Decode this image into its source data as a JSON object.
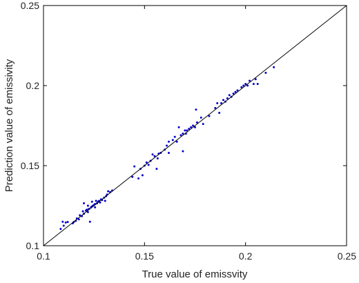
{
  "chart_data": {
    "type": "scatter",
    "title": "",
    "xlabel": "True value of emissvity",
    "ylabel": "Prediction value of emissivity",
    "xlim": [
      0.1,
      0.25
    ],
    "ylim": [
      0.1,
      0.25
    ],
    "xticks": [
      "0.1",
      "0.15",
      "0.2",
      "0.25"
    ],
    "yticks": [
      "0.1",
      "0.15",
      "0.2",
      "0.25"
    ],
    "grid": false,
    "reference_line": {
      "from": [
        0.1,
        0.1
      ],
      "to": [
        0.25,
        0.25
      ],
      "color": "#000000"
    },
    "series": [
      {
        "color": "#0000cc",
        "points": [
          [
            0.1085,
            0.1105
          ],
          [
            0.1095,
            0.115
          ],
          [
            0.11,
            0.1125
          ],
          [
            0.111,
            0.1145
          ],
          [
            0.112,
            0.1148
          ],
          [
            0.1145,
            0.114
          ],
          [
            0.115,
            0.1148
          ],
          [
            0.116,
            0.1155
          ],
          [
            0.1165,
            0.117
          ],
          [
            0.1175,
            0.1165
          ],
          [
            0.118,
            0.119
          ],
          [
            0.119,
            0.1185
          ],
          [
            0.1195,
            0.1215
          ],
          [
            0.12,
            0.12
          ],
          [
            0.12,
            0.1265
          ],
          [
            0.121,
            0.122
          ],
          [
            0.1215,
            0.1225
          ],
          [
            0.122,
            0.121
          ],
          [
            0.122,
            0.125
          ],
          [
            0.1225,
            0.123
          ],
          [
            0.123,
            0.115
          ],
          [
            0.1235,
            0.124
          ],
          [
            0.124,
            0.1245
          ],
          [
            0.124,
            0.1275
          ],
          [
            0.1245,
            0.125
          ],
          [
            0.125,
            0.1255
          ],
          [
            0.1255,
            0.126
          ],
          [
            0.1255,
            0.124
          ],
          [
            0.126,
            0.128
          ],
          [
            0.1265,
            0.1265
          ],
          [
            0.127,
            0.1275
          ],
          [
            0.1275,
            0.128
          ],
          [
            0.128,
            0.127
          ],
          [
            0.1285,
            0.129
          ],
          [
            0.129,
            0.1285
          ],
          [
            0.13,
            0.13
          ],
          [
            0.1305,
            0.128
          ],
          [
            0.131,
            0.131
          ],
          [
            0.1315,
            0.132
          ],
          [
            0.132,
            0.134
          ],
          [
            0.133,
            0.1335
          ],
          [
            0.134,
            0.1345
          ],
          [
            0.144,
            0.143
          ],
          [
            0.145,
            0.1495
          ],
          [
            0.147,
            0.142
          ],
          [
            0.148,
            0.148
          ],
          [
            0.149,
            0.144
          ],
          [
            0.15,
            0.15
          ],
          [
            0.151,
            0.152
          ],
          [
            0.152,
            0.1505
          ],
          [
            0.153,
            0.153
          ],
          [
            0.154,
            0.157
          ],
          [
            0.155,
            0.156
          ],
          [
            0.156,
            0.148
          ],
          [
            0.1565,
            0.1545
          ],
          [
            0.157,
            0.1575
          ],
          [
            0.158,
            0.158
          ],
          [
            0.16,
            0.16
          ],
          [
            0.161,
            0.1625
          ],
          [
            0.162,
            0.158
          ],
          [
            0.162,
            0.165
          ],
          [
            0.164,
            0.166
          ],
          [
            0.165,
            0.168
          ],
          [
            0.166,
            0.165
          ],
          [
            0.167,
            0.174
          ],
          [
            0.168,
            0.169
          ],
          [
            0.169,
            0.17
          ],
          [
            0.169,
            0.159
          ],
          [
            0.17,
            0.172
          ],
          [
            0.1705,
            0.17
          ],
          [
            0.171,
            0.172
          ],
          [
            0.172,
            0.173
          ],
          [
            0.173,
            0.174
          ],
          [
            0.174,
            0.175
          ],
          [
            0.175,
            0.174
          ],
          [
            0.1755,
            0.185
          ],
          [
            0.176,
            0.177
          ],
          [
            0.178,
            0.18
          ],
          [
            0.179,
            0.176
          ],
          [
            0.182,
            0.181
          ],
          [
            0.185,
            0.186
          ],
          [
            0.186,
            0.189
          ],
          [
            0.187,
            0.183
          ],
          [
            0.188,
            0.189
          ],
          [
            0.189,
            0.191
          ],
          [
            0.19,
            0.19
          ],
          [
            0.191,
            0.192
          ],
          [
            0.192,
            0.194
          ],
          [
            0.193,
            0.193
          ],
          [
            0.194,
            0.195
          ],
          [
            0.195,
            0.196
          ],
          [
            0.196,
            0.197
          ],
          [
            0.198,
            0.199
          ],
          [
            0.199,
            0.2
          ],
          [
            0.2,
            0.201
          ],
          [
            0.201,
            0.2
          ],
          [
            0.202,
            0.203
          ],
          [
            0.204,
            0.201
          ],
          [
            0.205,
            0.204
          ],
          [
            0.206,
            0.201
          ],
          [
            0.21,
            0.208
          ],
          [
            0.214,
            0.2115
          ]
        ]
      }
    ]
  }
}
